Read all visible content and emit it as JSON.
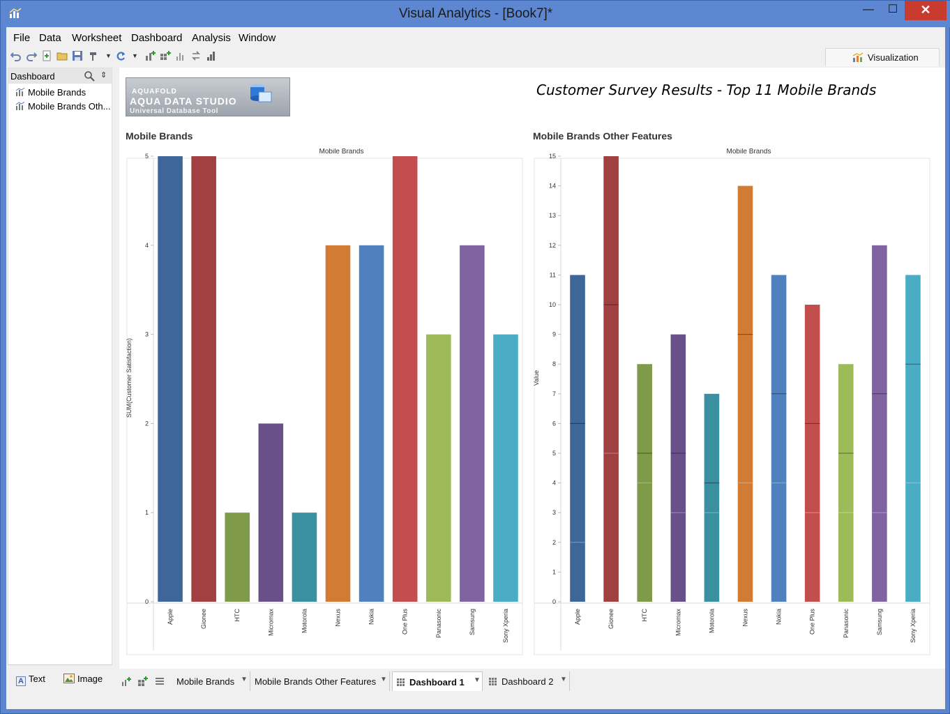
{
  "window": {
    "title": "Visual Analytics - [Book7]*",
    "minimize": "—",
    "maximize": "☐",
    "close": "✕"
  },
  "menu": [
    "File",
    "Data",
    "Worksheet",
    "Dashboard",
    "Analysis",
    "Window"
  ],
  "toolbar": {
    "visualization_tab": "Visualization"
  },
  "left_panel": {
    "header": "Dashboard",
    "items": [
      "Mobile Brands",
      "Mobile Brands Oth..."
    ],
    "bottom": {
      "text_button": "Text",
      "image_button": "Image"
    }
  },
  "dashboard": {
    "logo": {
      "line1": "AQUAFOLD",
      "line2": "AQUA DATA STUDIO",
      "line3": "Universal Database Tool"
    },
    "title": "Customer Survey Results - Top 11 Mobile Brands",
    "colors": {
      "Apple": "#3e6699",
      "Gionee": "#a04040",
      "HTC": "#7f9a48",
      "Micromax": "#6a5088",
      "Motorola": "#3a8fa0",
      "Nexus": "#d17b35",
      "Nokia": "#4e81bd",
      "One Plus": "#c24f4e",
      "Panasonic": "#9dbb59",
      "Samsung": "#8064a2",
      "Sony Xperia": "#4bacc6"
    }
  },
  "sheet_tabs": [
    {
      "label": "Mobile Brands",
      "active": false
    },
    {
      "label": "Mobile Brands Other Features",
      "active": false
    },
    {
      "label": "Dashboard 1",
      "active": true
    },
    {
      "label": "Dashboard 2",
      "active": false
    }
  ],
  "chart_data": [
    {
      "type": "bar",
      "heading": "Mobile Brands",
      "title": "Mobile Brands",
      "xlabel": "",
      "ylabel": "SUM(Customer Satisfaction)",
      "ylim": [
        0,
        5
      ],
      "yticks": [
        0,
        1,
        2,
        3,
        4,
        5
      ],
      "categories": [
        "Apple",
        "Gionee",
        "HTC",
        "Micromax",
        "Motorola",
        "Nexus",
        "Nokia",
        "One Plus",
        "Panasonic",
        "Samsung",
        "Sony Xperia"
      ],
      "values": [
        5,
        5,
        1,
        2,
        1,
        4,
        4,
        5,
        3,
        4,
        3
      ]
    },
    {
      "type": "bar",
      "stacked": true,
      "heading": "Mobile Brands Other Features",
      "title": "Mobile Brands",
      "xlabel": "",
      "ylabel": "Value",
      "ylim": [
        0,
        15
      ],
      "yticks": [
        0,
        1,
        2,
        3,
        4,
        5,
        6,
        7,
        8,
        9,
        10,
        11,
        12,
        13,
        14,
        15
      ],
      "categories": [
        "Apple",
        "Gionee",
        "HTC",
        "Micromax",
        "Motorola",
        "Nexus",
        "Nokia",
        "One Plus",
        "Panasonic",
        "Samsung",
        "Sony Xperia"
      ],
      "segments": [
        [
          2,
          4,
          5
        ],
        [
          5,
          5,
          5
        ],
        [
          4,
          1,
          3
        ],
        [
          3,
          2,
          4
        ],
        [
          3,
          1,
          3
        ],
        [
          4,
          5,
          5
        ],
        [
          4,
          3,
          4
        ],
        [
          3,
          3,
          4
        ],
        [
          3,
          2,
          3
        ],
        [
          3,
          4,
          5
        ],
        [
          4,
          4,
          3
        ]
      ],
      "totals": [
        11,
        15,
        8,
        9,
        7,
        14,
        11,
        10,
        8,
        12,
        11
      ]
    }
  ]
}
